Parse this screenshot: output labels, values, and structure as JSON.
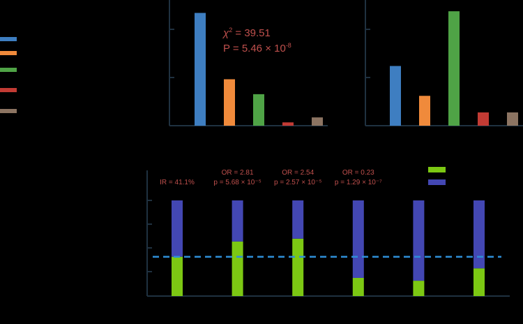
{
  "colors": {
    "background": "#000000",
    "axis": "#1f3140",
    "annotation": "#c0504d",
    "reference_line": "#2f8fd8"
  },
  "legend": {
    "swatch_colors": [
      "#3e7ec1",
      "#f08a3b",
      "#4fa346",
      "#c23b34",
      "#8c7462"
    ]
  },
  "chart_data": [
    {
      "type": "bar",
      "categories": [
        "",
        "",
        "",
        "",
        ""
      ],
      "colors": [
        "#3e7ec1",
        "#f08a3b",
        "#4fa346",
        "#c23b34",
        "#8c7462"
      ],
      "values": [
        0.68,
        0.28,
        0.19,
        0.02,
        0.05
      ],
      "ylim": [
        0,
        0.72
      ],
      "grid": false,
      "annotations": {
        "chi_symbol": "χ",
        "chi_sup": "2",
        "chi_value": " = 39.51",
        "p_text": "P = 5.46 × 10",
        "p_sup": "-8"
      }
    },
    {
      "type": "bar",
      "categories": [
        "",
        "",
        "",
        "",
        ""
      ],
      "colors": [
        "#3e7ec1",
        "#f08a3b",
        "#4fa346",
        "#c23b34",
        "#8c7462"
      ],
      "values": [
        0.36,
        0.18,
        0.69,
        0.08,
        0.08
      ],
      "ylim": [
        0,
        0.72
      ],
      "grid": false
    },
    {
      "type": "bar",
      "stacked": true,
      "percent": true,
      "categories": [
        "",
        "",
        "",
        "",
        "",
        ""
      ],
      "series": [
        {
          "color": "#7cc813",
          "values": [
            41.1,
            57.0,
            60.0,
            19.0,
            16.0,
            29.0
          ]
        },
        {
          "color": "#4347b3",
          "values": [
            58.9,
            43.0,
            40.0,
            81.0,
            84.0,
            71.0
          ]
        }
      ],
      "ylim": [
        0,
        100
      ],
      "reference_line": 41.1,
      "legend_position": "top-right",
      "annotations": [
        {
          "bar": 0,
          "lines": [
            "IR = 41.1%"
          ]
        },
        {
          "bar": 1,
          "lines": [
            "OR = 2.81",
            "p = 5.68 × 10⁻⁵"
          ]
        },
        {
          "bar": 2,
          "lines": [
            "OR = 2.54",
            "p = 2.57 × 10⁻⁵"
          ]
        },
        {
          "bar": 3,
          "lines": [
            "OR = 0.23",
            "p = 1.29 × 10⁻⁷"
          ]
        }
      ]
    }
  ]
}
